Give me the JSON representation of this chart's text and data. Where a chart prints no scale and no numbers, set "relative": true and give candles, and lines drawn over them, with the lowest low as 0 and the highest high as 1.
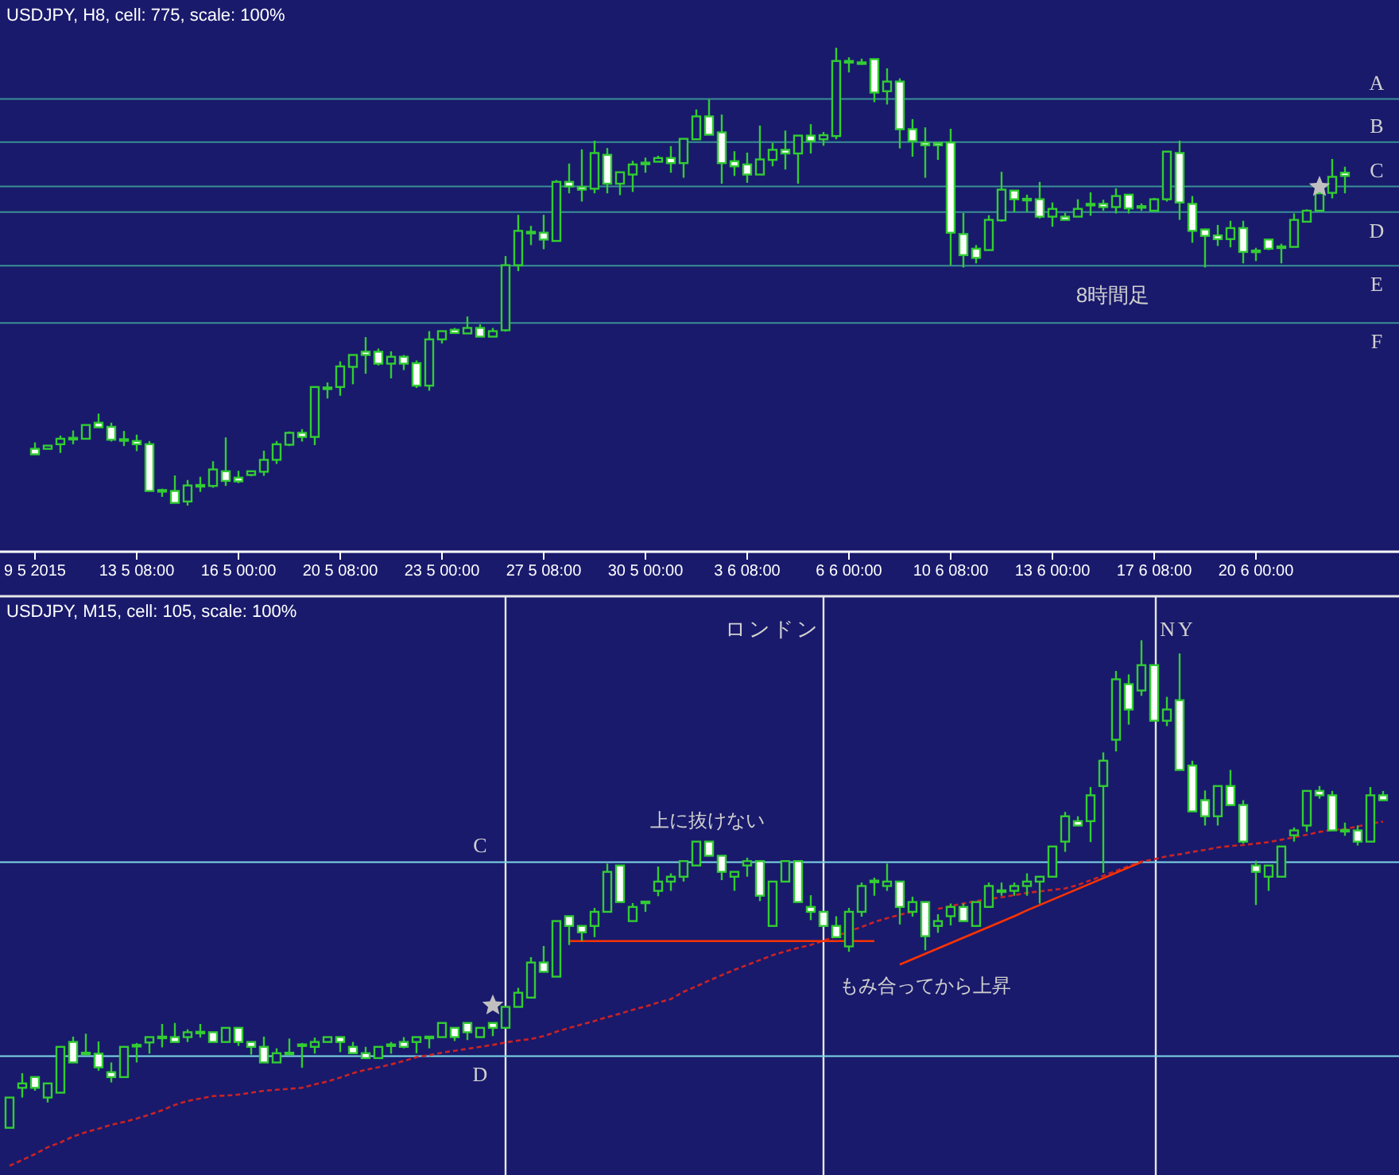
{
  "chart_data": [
    {
      "type": "candlestick",
      "title": "USDJPY, H8, cell: 775, scale: 100%",
      "relative": true,
      "categories": [
        "9 5 2015",
        null,
        null,
        null,
        null,
        null,
        null,
        null,
        "13 5 08:00",
        null,
        null,
        null,
        null,
        null,
        null,
        null,
        "16 5 00:00",
        null,
        null,
        null,
        null,
        null,
        null,
        null,
        "20 5 08:00",
        null,
        null,
        null,
        null,
        null,
        null,
        null,
        "23 5 00:00",
        null,
        null,
        null,
        null,
        null,
        null,
        null,
        "27 5 08:00",
        null,
        null,
        null,
        null,
        null,
        null,
        null,
        "30 5 00:00",
        null,
        null,
        null,
        null,
        null,
        null,
        null,
        "3 6 08:00",
        null,
        null,
        null,
        null,
        null,
        null,
        null,
        "6 6 00:00",
        null,
        null,
        null,
        null,
        null,
        null,
        null,
        "10 6 08:00",
        null,
        null,
        null,
        null,
        null,
        null,
        null,
        "13 6 00:00",
        null,
        null,
        null,
        null,
        null,
        null,
        null,
        "17 6 08:00",
        null,
        null,
        null,
        null,
        null,
        null,
        null,
        "20 6 00:00",
        null,
        null,
        null,
        null,
        null,
        null,
        null
      ],
      "ohlc": [
        [
          0.124,
          0.138,
          0.112,
          0.112
        ],
        [
          0.124,
          0.131,
          0.124,
          0.131
        ],
        [
          0.134,
          0.153,
          0.115,
          0.146
        ],
        [
          0.146,
          0.164,
          0.134,
          0.148
        ],
        [
          0.146,
          0.176,
          0.144,
          0.176
        ],
        [
          0.181,
          0.201,
          0.171,
          0.171
        ],
        [
          0.172,
          0.181,
          0.14,
          0.144
        ],
        [
          0.145,
          0.163,
          0.13,
          0.142
        ],
        [
          0.141,
          0.155,
          0.119,
          0.134
        ],
        [
          0.134,
          0.141,
          0.032,
          0.032
        ],
        [
          0.034,
          0.037,
          0.019,
          0.031
        ],
        [
          0.032,
          0.066,
          0.006,
          0.006
        ],
        [
          0.009,
          0.056,
          0,
          0.044
        ],
        [
          0.043,
          0.063,
          0.03,
          0.045
        ],
        [
          0.043,
          0.097,
          0.039,
          0.079
        ],
        [
          0.075,
          0.149,
          0.043,
          0.054
        ],
        [
          0.061,
          0.076,
          0.049,
          0.053
        ],
        [
          0.067,
          0.075,
          0.064,
          0.075
        ],
        [
          0.074,
          0.12,
          0.065,
          0.1
        ],
        [
          0.1,
          0.141,
          0.091,
          0.134
        ],
        [
          0.133,
          0.162,
          0.13,
          0.159
        ],
        [
          0.159,
          0.167,
          0.14,
          0.15
        ],
        [
          0.15,
          0.259,
          0.132,
          0.259
        ],
        [
          0.258,
          0.269,
          0.234,
          0.256
        ],
        [
          0.259,
          0.315,
          0.24,
          0.304
        ],
        [
          0.303,
          0.329,
          0.265,
          0.329
        ],
        [
          0.336,
          0.368,
          0.288,
          0.329
        ],
        [
          0.336,
          0.343,
          0.306,
          0.31
        ],
        [
          0.31,
          0.337,
          0.278,
          0.325
        ],
        [
          0.325,
          0.329,
          0.296,
          0.31
        ],
        [
          0.311,
          0.317,
          0.257,
          0.262
        ],
        [
          0.262,
          0.381,
          0.251,
          0.363
        ],
        [
          0.363,
          0.381,
          0.354,
          0.381
        ],
        [
          0.384,
          0.388,
          0.377,
          0.377
        ],
        [
          0.376,
          0.413,
          0.376,
          0.388
        ],
        [
          0.388,
          0.396,
          0.369,
          0.369
        ],
        [
          0.369,
          0.388,
          0.369,
          0.381
        ],
        [
          0.383,
          0.545,
          0.38,
          0.525
        ],
        [
          0.525,
          0.635,
          0.512,
          0.6
        ],
        [
          0.596,
          0.611,
          0.569,
          0.598
        ],
        [
          0.596,
          0.635,
          0.56,
          0.581
        ],
        [
          0.578,
          0.711,
          0.578,
          0.707
        ],
        [
          0.707,
          0.747,
          0.682,
          0.697
        ],
        [
          0.696,
          0.778,
          0.664,
          0.69
        ],
        [
          0.692,
          0.797,
          0.682,
          0.77
        ],
        [
          0.766,
          0.781,
          0.682,
          0.703
        ],
        [
          0.703,
          0.728,
          0.678,
          0.728
        ],
        [
          0.723,
          0.753,
          0.685,
          0.745
        ],
        [
          0.747,
          0.76,
          0.727,
          0.749
        ],
        [
          0.751,
          0.764,
          0.751,
          0.759
        ],
        [
          0.759,
          0.785,
          0.727,
          0.748
        ],
        [
          0.748,
          0.801,
          0.716,
          0.801
        ],
        [
          0.8,
          0.865,
          0.8,
          0.85
        ],
        [
          0.85,
          0.887,
          0.81,
          0.81
        ],
        [
          0.815,
          0.854,
          0.703,
          0.748
        ],
        [
          0.752,
          0.774,
          0.72,
          0.741
        ],
        [
          0.745,
          0.771,
          0.705,
          0.723
        ],
        [
          0.723,
          0.83,
          0.723,
          0.756
        ],
        [
          0.755,
          0.792,
          0.741,
          0.777
        ],
        [
          0.777,
          0.819,
          0.734,
          0.769
        ],
        [
          0.769,
          0.808,
          0.703,
          0.808
        ],
        [
          0.808,
          0.833,
          0.769,
          0.796
        ],
        [
          0.8,
          0.816,
          0.786,
          0.809
        ],
        [
          0.807,
          1,
          0.8,
          0.971
        ],
        [
          0.969,
          0.979,
          0.946,
          0.971
        ],
        [
          0.968,
          0.976,
          0.963,
          0.965
        ],
        [
          0.975,
          0.975,
          0.881,
          0.902
        ],
        [
          0.905,
          0.955,
          0.876,
          0.926
        ],
        [
          0.926,
          0.933,
          0.78,
          0.822
        ],
        [
          0.822,
          0.844,
          0.762,
          0.796
        ],
        [
          0.793,
          0.826,
          0.716,
          0.787
        ],
        [
          0.792,
          0.792,
          0.755,
          0.787
        ],
        [
          0.793,
          0.823,
          0.525,
          0.596
        ],
        [
          0.593,
          0.639,
          0.52,
          0.547
        ],
        [
          0.561,
          0.569,
          0.529,
          0.541
        ],
        [
          0.558,
          0.634,
          0.558,
          0.624
        ],
        [
          0.623,
          0.729,
          0.62,
          0.69
        ],
        [
          0.688,
          0.688,
          0.641,
          0.669
        ],
        [
          0.67,
          0.679,
          0.641,
          0.669
        ],
        [
          0.669,
          0.707,
          0.627,
          0.631
        ],
        [
          0.631,
          0.662,
          0.609,
          0.648
        ],
        [
          0.631,
          0.639,
          0.624,
          0.624
        ],
        [
          0.631,
          0.669,
          0.631,
          0.648
        ],
        [
          0.656,
          0.684,
          0.633,
          0.659
        ],
        [
          0.659,
          0.668,
          0.644,
          0.652
        ],
        [
          0.652,
          0.693,
          0.638,
          0.676
        ],
        [
          0.679,
          0.679,
          0.638,
          0.649
        ],
        [
          0.652,
          0.66,
          0.644,
          0.654
        ],
        [
          0.644,
          0.672,
          0.644,
          0.669
        ],
        [
          0.669,
          0.773,
          0.664,
          0.773
        ],
        [
          0.77,
          0.797,
          0.624,
          0.662
        ],
        [
          0.659,
          0.676,
          0.574,
          0.6
        ],
        [
          0.603,
          0.605,
          0.52,
          0.589
        ],
        [
          0.59,
          0.613,
          0.567,
          0.582
        ],
        [
          0.582,
          0.622,
          0.564,
          0.606
        ],
        [
          0.606,
          0.622,
          0.529,
          0.554
        ],
        [
          0.557,
          0.563,
          0.534,
          0.554
        ],
        [
          0.581,
          0.581,
          0.558,
          0.561
        ],
        [
          0.566,
          0.572,
          0.529,
          0.564
        ],
        [
          0.565,
          0.638,
          0.565,
          0.624
        ],
        [
          0.62,
          0.647,
          0.62,
          0.644
        ],
        [
          0.644,
          0.688,
          0.644,
          0.682
        ],
        [
          0.683,
          0.757,
          0.671,
          0.718
        ],
        [
          0.727,
          0.74,
          0.682,
          0.72
        ]
      ],
      "ref_lines": [
        {
          "axis": "y",
          "value": 0.888,
          "label": "A",
          "color": "#3a8f96"
        },
        {
          "axis": "y",
          "value": 0.794,
          "label": "B",
          "color": "#3a8f96"
        },
        {
          "axis": "y",
          "value": 0.697,
          "label": "C",
          "color": "#3a8f96"
        },
        {
          "axis": "y",
          "value": 0.641,
          "label": "D",
          "color": "#3a8f96"
        },
        {
          "axis": "y",
          "value": 0.524,
          "label": "E",
          "color": "#3a8f96"
        },
        {
          "axis": "y",
          "value": 0.399,
          "label": "F",
          "color": "#3a8f96"
        }
      ],
      "series": [
        {
          "type": "scatter",
          "marker": "star",
          "color": "#c0c0c0",
          "values": [
            null,
            null,
            null,
            null,
            null,
            null,
            null,
            null,
            null,
            null,
            null,
            null,
            null,
            null,
            null,
            null,
            null,
            null,
            null,
            null,
            null,
            null,
            null,
            null,
            null,
            null,
            null,
            null,
            null,
            null,
            null,
            null,
            null,
            null,
            null,
            null,
            null,
            null,
            null,
            null,
            null,
            null,
            null,
            null,
            null,
            null,
            null,
            null,
            null,
            null,
            null,
            null,
            null,
            null,
            null,
            null,
            null,
            null,
            null,
            null,
            null,
            null,
            null,
            null,
            null,
            null,
            null,
            null,
            null,
            null,
            null,
            null,
            null,
            null,
            null,
            null,
            null,
            null,
            null,
            null,
            null,
            null,
            null,
            null,
            null,
            null,
            null,
            null,
            null,
            null,
            null,
            null,
            null,
            null,
            null,
            null,
            null,
            null,
            null,
            null,
            null,
            0.696,
            null,
            null
          ]
        }
      ],
      "annotations": [
        "8時間足"
      ]
    },
    {
      "type": "candlestick",
      "title": "USDJPY, M15, cell: 105, scale: 100%",
      "relative": true,
      "categories": [
        null,
        null,
        null,
        null,
        null,
        null,
        null,
        null,
        null,
        null,
        null,
        null,
        null,
        null,
        null,
        null,
        null,
        null,
        null,
        null,
        null,
        null,
        null,
        null,
        null,
        null,
        null,
        null,
        null,
        null,
        null,
        null,
        null,
        null,
        null,
        null,
        null,
        null,
        null,
        null,
        null,
        null,
        null,
        null,
        null,
        null,
        null,
        null,
        null,
        null,
        null,
        null,
        null,
        null,
        null,
        null,
        null,
        null,
        null,
        null,
        null,
        null,
        null,
        null,
        null,
        null,
        null,
        null,
        null,
        null,
        null,
        null,
        null,
        null,
        null,
        null,
        null,
        null,
        null,
        null,
        null,
        null,
        null,
        null,
        null,
        null,
        null,
        null,
        null,
        null,
        null,
        null,
        null,
        null,
        null,
        null,
        null,
        null,
        null,
        null,
        null,
        null,
        null,
        null,
        null,
        null,
        null,
        null,
        null
      ],
      "ohlc": [
        [
          0,
          0.062,
          0,
          0.062
        ],
        [
          0.082,
          0.112,
          0.062,
          0.091
        ],
        [
          0.104,
          0.104,
          0.076,
          0.082
        ],
        [
          0.062,
          0.091,
          0.052,
          0.091
        ],
        [
          0.072,
          0.166,
          0.072,
          0.166
        ],
        [
          0.176,
          0.187,
          0.134,
          0.134
        ],
        [
          0.154,
          0.193,
          0.153,
          0.153
        ],
        [
          0.152,
          0.177,
          0.117,
          0.124
        ],
        [
          0.114,
          0.134,
          0.093,
          0.104
        ],
        [
          0.104,
          0.166,
          0.104,
          0.166
        ],
        [
          0.167,
          0.174,
          0.134,
          0.17
        ],
        [
          0.175,
          0.186,
          0.152,
          0.186
        ],
        [
          0.185,
          0.213,
          0.165,
          0.187
        ],
        [
          0.186,
          0.215,
          0.176,
          0.176
        ],
        [
          0.186,
          0.202,
          0.176,
          0.196
        ],
        [
          0.195,
          0.213,
          0.185,
          0.197
        ],
        [
          0.196,
          0.196,
          0.176,
          0.176
        ],
        [
          0.176,
          0.205,
          0.176,
          0.205
        ],
        [
          0.205,
          0.205,
          0.168,
          0.176
        ],
        [
          0.176,
          0.176,
          0.15,
          0.166
        ],
        [
          0.166,
          0.187,
          0.134,
          0.134
        ],
        [
          0.134,
          0.163,
          0.134,
          0.153
        ],
        [
          0.154,
          0.183,
          0.153,
          0.153
        ],
        [
          0.168,
          0.174,
          0.123,
          0.171
        ],
        [
          0.166,
          0.185,
          0.152,
          0.176
        ],
        [
          0.176,
          0.186,
          0.176,
          0.186
        ],
        [
          0.186,
          0.186,
          0.155,
          0.176
        ],
        [
          0.166,
          0.176,
          0.153,
          0.153
        ],
        [
          0.153,
          0.166,
          0.143,
          0.143
        ],
        [
          0.143,
          0.166,
          0.143,
          0.166
        ],
        [
          0.168,
          0.176,
          0.152,
          0.171
        ],
        [
          0.176,
          0.186,
          0.163,
          0.166
        ],
        [
          0.176,
          0.186,
          0.153,
          0.186
        ],
        [
          0.187,
          0.187,
          0.163,
          0.186
        ],
        [
          0.186,
          0.215,
          0.186,
          0.215
        ],
        [
          0.205,
          0.205,
          0.178,
          0.186
        ],
        [
          0.215,
          0.215,
          0.18,
          0.196
        ],
        [
          0.186,
          0.205,
          0.186,
          0.205
        ],
        [
          0.215,
          0.215,
          0.188,
          0.205
        ],
        [
          0.205,
          0.248,
          0.205,
          0.248
        ],
        [
          0.248,
          0.287,
          0.248,
          0.277
        ],
        [
          0.267,
          0.35,
          0.267,
          0.339
        ],
        [
          0.339,
          0.373,
          0.32,
          0.32
        ],
        [
          0.31,
          0.424,
          0.31,
          0.424
        ],
        [
          0.434,
          0.434,
          0.375,
          0.414
        ],
        [
          0.414,
          0.414,
          0.383,
          0.401
        ],
        [
          0.414,
          0.451,
          0.391,
          0.443
        ],
        [
          0.443,
          0.542,
          0.443,
          0.525
        ],
        [
          0.538,
          0.538,
          0.463,
          0.463
        ],
        [
          0.424,
          0.461,
          0.424,
          0.453
        ],
        [
          0.464,
          0.464,
          0.443,
          0.463
        ],
        [
          0.486,
          0.536,
          0.475,
          0.505
        ],
        [
          0.505,
          0.522,
          0.486,
          0.515
        ],
        [
          0.515,
          0.547,
          0.505,
          0.547
        ],
        [
          0.538,
          0.587,
          0.538,
          0.587
        ],
        [
          0.587,
          0.587,
          0.558,
          0.558
        ],
        [
          0.558,
          0.558,
          0.508,
          0.525
        ],
        [
          0.515,
          0.525,
          0.486,
          0.525
        ],
        [
          0.538,
          0.554,
          0.515,
          0.547
        ],
        [
          0.547,
          0.547,
          0.465,
          0.476
        ],
        [
          0.414,
          0.505,
          0.414,
          0.505
        ],
        [
          0.505,
          0.547,
          0.505,
          0.547
        ],
        [
          0.547,
          0.547,
          0.463,
          0.463
        ],
        [
          0.453,
          0.477,
          0.426,
          0.443
        ],
        [
          0.443,
          0.443,
          0.414,
          0.414
        ],
        [
          0.414,
          0.434,
          0.391,
          0.391
        ],
        [
          0.372,
          0.451,
          0.361,
          0.443
        ],
        [
          0.443,
          0.503,
          0.433,
          0.496
        ],
        [
          0.505,
          0.513,
          0.476,
          0.507
        ],
        [
          0.496,
          0.542,
          0.486,
          0.505
        ],
        [
          0.505,
          0.505,
          0.417,
          0.453
        ],
        [
          0.443,
          0.474,
          0.433,
          0.463
        ],
        [
          0.463,
          0.463,
          0.364,
          0.393
        ],
        [
          0.414,
          0.438,
          0.4,
          0.424
        ],
        [
          0.434,
          0.46,
          0.415,
          0.453
        ],
        [
          0.453,
          0.46,
          0.424,
          0.424
        ],
        [
          0.414,
          0.463,
          0.414,
          0.463
        ],
        [
          0.453,
          0.503,
          0.453,
          0.496
        ],
        [
          0.485,
          0.503,
          0.476,
          0.487
        ],
        [
          0.486,
          0.503,
          0.476,
          0.496
        ],
        [
          0.496,
          0.522,
          0.476,
          0.505
        ],
        [
          0.505,
          0.515,
          0.46,
          0.515
        ],
        [
          0.515,
          0.577,
          0.515,
          0.577
        ],
        [
          0.587,
          0.648,
          0.566,
          0.639
        ],
        [
          0.629,
          0.639,
          0.62,
          0.62
        ],
        [
          0.629,
          0.699,
          0.586,
          0.682
        ],
        [
          0.701,
          0.77,
          0.523,
          0.753
        ],
        [
          0.796,
          0.937,
          0.772,
          0.92
        ],
        [
          0.91,
          0.93,
          0.827,
          0.858
        ],
        [
          0.897,
          1,
          0.886,
          0.949
        ],
        [
          0.949,
          0.949,
          0.835,
          0.835
        ],
        [
          0.835,
          0.884,
          0.824,
          0.858
        ],
        [
          0.877,
          0.973,
          0.734,
          0.734
        ],
        [
          0.743,
          0.753,
          0.649,
          0.649
        ],
        [
          0.672,
          0.692,
          0.62,
          0.639
        ],
        [
          0.639,
          0.701,
          0.62,
          0.701
        ],
        [
          0.701,
          0.734,
          0.662,
          0.662
        ],
        [
          0.662,
          0.672,
          0.583,
          0.587
        ],
        [
          0.538,
          0.548,
          0.457,
          0.525
        ],
        [
          0.515,
          0.538,
          0.486,
          0.538
        ],
        [
          0.515,
          0.577,
          0.515,
          0.577
        ],
        [
          0.6,
          0.616,
          0.587,
          0.61
        ],
        [
          0.62,
          0.691,
          0.607,
          0.691
        ],
        [
          0.691,
          0.701,
          0.675,
          0.682
        ],
        [
          0.682,
          0.691,
          0.61,
          0.61
        ],
        [
          0.609,
          0.626,
          0.599,
          0.611
        ],
        [
          0.61,
          0.62,
          0.579,
          0.587
        ],
        [
          0.587,
          0.699,
          0.587,
          0.682
        ],
        [
          0.682,
          0.691,
          0.672,
          0.672
        ]
      ],
      "ref_lines": [
        {
          "axis": "y",
          "value": 0.545,
          "label": "C",
          "color": "#7fd8e8"
        },
        {
          "axis": "y",
          "value": 0.147,
          "label": "D",
          "color": "#7fd8e8"
        }
      ],
      "series": [
        {
          "type": "line",
          "line_style": "dashed",
          "color": "#cc2222",
          "values": [
            -0.078,
            -0.066,
            -0.054,
            -0.04,
            -0.03,
            -0.018,
            -0.009,
            -0.002,
            0.006,
            0.012,
            0.019,
            0.027,
            0.036,
            0.047,
            0.055,
            0.06,
            0.065,
            0.066,
            0.068,
            0.072,
            0.076,
            0.078,
            0.08,
            0.082,
            0.089,
            0.095,
            0.103,
            0.112,
            0.119,
            0.124,
            0.13,
            0.137,
            0.145,
            0.149,
            0.154,
            0.158,
            0.162,
            0.166,
            0.17,
            0.175,
            0.179,
            0.182,
            0.188,
            0.197,
            0.205,
            0.212,
            0.219,
            0.227,
            0.234,
            0.242,
            0.249,
            0.257,
            0.264,
            0.279,
            0.29,
            0.302,
            0.313,
            0.324,
            0.334,
            0.344,
            0.354,
            0.362,
            0.369,
            0.375,
            0.384,
            0.393,
            0.403,
            0.412,
            0.422,
            0.43,
            0.437,
            0.443,
            null,
            0.449,
            0.455,
            0.46,
            0.465,
            0.469,
            0.473,
            0.477,
            0.482,
            0.485,
            0.488,
            0.491,
            0.498,
            0.508,
            0.517,
            0.527,
            0.537,
            0.546,
            0.551,
            0.557,
            0.561,
            0.566,
            0.57,
            0.575,
            0.578,
            0.58,
            0.583,
            0.586,
            0.591,
            0.596,
            0.601,
            0.607,
            0.611,
            0.613,
            0.618,
            0.624,
            0.628
          ]
        },
        {
          "type": "line",
          "line_style": "solid",
          "color": "#ff3300",
          "values": [
            null,
            null,
            null,
            null,
            null,
            null,
            null,
            null,
            null,
            null,
            null,
            null,
            null,
            null,
            null,
            null,
            null,
            null,
            null,
            null,
            null,
            null,
            null,
            null,
            null,
            null,
            null,
            null,
            null,
            null,
            null,
            null,
            null,
            null,
            null,
            null,
            null,
            null,
            null,
            null,
            null,
            null,
            null,
            null,
            0.383,
            0.383,
            0.383,
            0.383,
            0.383,
            0.383,
            0.383,
            0.383,
            0.383,
            0.383,
            0.383,
            0.383,
            0.383,
            0.383,
            0.383,
            0.383,
            0.383,
            0.383,
            0.383,
            0.383,
            0.383,
            0.383,
            0.383,
            0.383,
            0.383,
            null,
            null,
            null,
            null,
            null,
            null,
            null,
            null,
            null,
            null,
            null,
            null,
            null,
            null,
            null,
            null,
            null,
            null,
            null,
            null,
            null,
            null,
            null,
            null,
            null,
            null,
            null,
            null,
            null,
            null,
            null,
            null,
            null,
            null,
            null,
            null,
            null,
            null,
            null,
            null
          ]
        },
        {
          "type": "line",
          "line_style": "solid",
          "color": "#ff3300",
          "values": [
            null,
            null,
            null,
            null,
            null,
            null,
            null,
            null,
            null,
            null,
            null,
            null,
            null,
            null,
            null,
            null,
            null,
            null,
            null,
            null,
            null,
            null,
            null,
            null,
            null,
            null,
            null,
            null,
            null,
            null,
            null,
            null,
            null,
            null,
            null,
            null,
            null,
            null,
            null,
            null,
            null,
            null,
            null,
            null,
            null,
            null,
            null,
            null,
            null,
            null,
            null,
            null,
            null,
            null,
            null,
            null,
            null,
            null,
            null,
            null,
            null,
            null,
            null,
            null,
            null,
            null,
            null,
            null,
            null,
            null,
            0.335,
            0.346,
            0.357,
            0.368,
            0.379,
            0.39,
            0.401,
            0.412,
            0.423,
            0.434,
            0.446,
            0.457,
            0.468,
            0.479,
            0.49,
            0.501,
            0.512,
            0.523,
            0.534,
            0.545,
            null,
            null,
            null,
            null,
            null,
            null,
            null,
            null,
            null,
            null,
            null,
            null,
            null,
            null,
            null,
            null,
            null,
            null,
            null
          ]
        },
        {
          "type": "scatter",
          "marker": "star",
          "color": "#c0c0c0",
          "values": [
            null,
            null,
            null,
            null,
            null,
            null,
            null,
            null,
            null,
            null,
            null,
            null,
            null,
            null,
            null,
            null,
            null,
            null,
            null,
            null,
            null,
            null,
            null,
            null,
            null,
            null,
            null,
            null,
            null,
            null,
            null,
            null,
            null,
            null,
            null,
            null,
            null,
            null,
            0.251,
            null,
            null,
            null,
            null,
            null,
            null,
            null,
            null,
            null,
            null,
            null,
            null,
            null,
            null,
            null,
            null,
            null,
            null,
            null,
            null,
            null,
            null,
            null,
            null,
            null,
            null,
            null,
            null,
            null,
            null,
            null,
            null,
            null,
            null,
            null,
            null,
            null,
            null,
            null,
            null,
            null,
            null,
            null,
            null,
            null,
            null,
            null,
            null,
            null,
            null,
            null,
            null,
            null,
            null,
            null,
            null,
            null,
            null,
            null,
            null,
            null,
            null,
            null,
            null,
            null,
            null,
            null,
            null,
            null,
            null
          ]
        }
      ],
      "annotations": [
        "ロンドン",
        "NY",
        "上に抜けない",
        "もみ合ってから上昇"
      ]
    }
  ]
}
